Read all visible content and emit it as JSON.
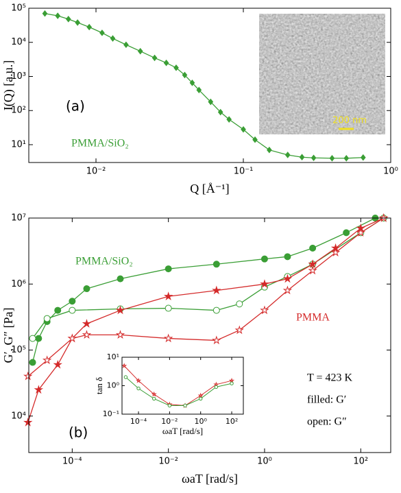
{
  "chart_data": [
    {
      "type": "line",
      "xscale": "log",
      "yscale": "log",
      "xlabel": "Q [Å⁻¹]",
      "ylabel": "I(Q) [a.u.]",
      "xlim": [
        0.0035,
        1
      ],
      "ylim": [
        3,
        100000
      ],
      "xticks": [
        {
          "value": 0.01,
          "label": "10⁻²"
        },
        {
          "value": 0.1,
          "label": "10⁻¹"
        },
        {
          "value": 1,
          "label": "10⁰"
        }
      ],
      "yticks": [
        {
          "value": 10,
          "label": "10¹"
        },
        {
          "value": 100,
          "label": "10²"
        },
        {
          "value": 1000,
          "label": "10³"
        },
        {
          "value": 10000,
          "label": "10⁴"
        },
        {
          "value": 100000,
          "label": "10⁵"
        }
      ],
      "series": [
        {
          "color": "#3a9e35",
          "marker": "diamond",
          "filled": true,
          "x": [
            0.0045,
            0.0055,
            0.0065,
            0.0075,
            0.009,
            0.011,
            0.013,
            0.016,
            0.02,
            0.025,
            0.03,
            0.035,
            0.04,
            0.045,
            0.05,
            0.06,
            0.07,
            0.08,
            0.1,
            0.12,
            0.15,
            0.2,
            0.25,
            0.3,
            0.4,
            0.5,
            0.65
          ],
          "values": [
            70000,
            60000,
            48000,
            38000,
            28000,
            19000,
            13000,
            8500,
            5500,
            3500,
            2500,
            1800,
            1100,
            650,
            400,
            180,
            90,
            55,
            28,
            14,
            7,
            5,
            4.3,
            4.1,
            4,
            4,
            4.2
          ]
        }
      ],
      "annotations": [
        "(a)",
        "PMMA/SiO₂",
        "200 nm"
      ]
    },
    {
      "type": "line",
      "xscale": "log",
      "yscale": "log",
      "xlabel": "ωaT [rad/s]",
      "ylabel": "G′, G″ [Pa]",
      "xlim": [
        1.25e-05,
        420
      ],
      "ylim": [
        2800,
        10000000
      ],
      "xticks": [
        {
          "value": 0.0001,
          "label": "10⁻⁴"
        },
        {
          "value": 0.01,
          "label": "10⁻²"
        },
        {
          "value": 1,
          "label": "10⁰"
        },
        {
          "value": 100,
          "label": "10²"
        }
      ],
      "yticks": [
        {
          "value": 10000,
          "label": "10⁴"
        },
        {
          "value": 100000,
          "label": "10⁵"
        },
        {
          "value": 1000000,
          "label": "10⁶"
        },
        {
          "value": 10000000,
          "label": "10⁷"
        }
      ],
      "series": [
        {
          "color": "#3a9e35",
          "marker": "circle",
          "filled": true,
          "x": [
            1.5e-05,
            2e-05,
            3e-05,
            5e-05,
            0.0001,
            0.0002,
            0.001,
            0.01,
            0.1,
            1,
            3,
            10,
            50,
            200
          ],
          "values": [
            65000,
            150000,
            270000,
            400000,
            550000,
            850000,
            1200000,
            1700000,
            2000000,
            2400000,
            2600000,
            3500000,
            6000000,
            10000000
          ]
        },
        {
          "color": "#3a9e35",
          "marker": "circle",
          "filled": false,
          "x": [
            1.5e-05,
            3e-05,
            0.0001,
            0.001,
            0.01,
            0.1,
            0.3,
            1,
            3,
            10,
            100,
            300
          ],
          "values": [
            150000,
            300000,
            400000,
            420000,
            430000,
            400000,
            500000,
            900000,
            1300000,
            2000000,
            6000000,
            10000000
          ]
        },
        {
          "color": "#d42a2a",
          "marker": "star",
          "filled": true,
          "x": [
            1.2e-05,
            2e-05,
            5e-05,
            0.0001,
            0.0002,
            0.001,
            0.01,
            0.1,
            1,
            3,
            10,
            30,
            100,
            300
          ],
          "values": [
            8000,
            25000,
            60000,
            150000,
            250000,
            400000,
            650000,
            800000,
            1000000,
            1200000,
            2000000,
            3500000,
            7000000,
            10000000
          ]
        },
        {
          "color": "#d42a2a",
          "marker": "star",
          "filled": false,
          "x": [
            1.2e-05,
            3e-05,
            0.0001,
            0.0002,
            0.001,
            0.01,
            0.1,
            0.3,
            1,
            3,
            10,
            30,
            100,
            300
          ],
          "values": [
            40000,
            70000,
            150000,
            170000,
            170000,
            150000,
            140000,
            200000,
            400000,
            800000,
            1600000,
            3000000,
            6000000,
            10000000
          ]
        }
      ],
      "annotations": [
        "(b)",
        "PMMA/SiO₂",
        "PMMA",
        "T = 423 K",
        "filled: G′",
        "open: G″"
      ]
    },
    {
      "type": "line",
      "xscale": "log",
      "yscale": "log",
      "xlabel": "ωaT [rad/s]",
      "ylabel": "tan δ",
      "xlim": [
        8.7e-06,
        560
      ],
      "ylim": [
        0.1,
        10
      ],
      "xticks": [
        {
          "value": 0.0001,
          "label": "10⁻⁴"
        },
        {
          "value": 0.01,
          "label": "10⁻²"
        },
        {
          "value": 1,
          "label": "10⁰"
        },
        {
          "value": 100,
          "label": "10²"
        }
      ],
      "yticks": [
        {
          "value": 0.1,
          "label": "10⁻¹"
        },
        {
          "value": 1,
          "label": "10⁰"
        },
        {
          "value": 10,
          "label": "10¹"
        }
      ],
      "series": [
        {
          "color": "#d42a2a",
          "marker": "star",
          "filled": false,
          "x": [
            1.2e-05,
            0.0001,
            0.001,
            0.01,
            0.1,
            1,
            10,
            100
          ],
          "values": [
            5,
            1.5,
            0.5,
            0.22,
            0.2,
            0.45,
            1.1,
            1.5
          ]
        },
        {
          "color": "#3a9e35",
          "marker": "circle",
          "filled": false,
          "x": [
            1.5e-05,
            0.0001,
            0.001,
            0.01,
            0.1,
            1,
            10,
            100
          ],
          "values": [
            2,
            0.8,
            0.35,
            0.2,
            0.2,
            0.35,
            0.9,
            1.2
          ]
        }
      ]
    }
  ]
}
